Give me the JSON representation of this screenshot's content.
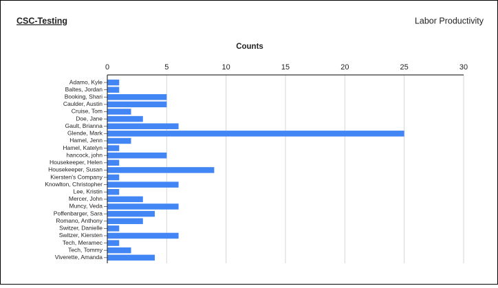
{
  "header": {
    "left_title": "CSC-Testing",
    "right_title": "Labor Productivity"
  },
  "chart_data": {
    "type": "bar",
    "orientation": "horizontal",
    "title": "Counts",
    "color": "#4285f4",
    "grid": true,
    "categories": [
      "Adamo, Kyle",
      "Baltes, Jordan",
      "Booking, Shari",
      "Caulder, Austin",
      "Cruise, Tom",
      "Doe, Jane",
      "Gault, Brianna",
      "Glende, Mark",
      "Hamel, Jenn",
      "Hamel, Katelyn",
      "hancock, john",
      "Housekeeper, Helen",
      "Housekeeper, Susan",
      "Kiersten's Company",
      "Knowlton, Christopher",
      "Lee, Kristin",
      "Mercer, John",
      "Muncy, Veda",
      "Poffenbarger, Sara",
      "Romano, Anthony",
      "Switzer, Danielle",
      "Switzer, Kiersten",
      "Tech, Meramec",
      "Tech, Tommy",
      "Viverette, Amanda"
    ],
    "values": [
      1,
      1,
      5,
      5,
      2,
      3,
      6,
      25,
      2,
      1,
      5,
      1,
      9,
      1,
      6,
      1,
      3,
      6,
      4,
      3,
      1,
      6,
      1,
      2,
      4
    ],
    "xlim": [
      0,
      30
    ],
    "xticks": [
      0,
      5,
      10,
      15,
      20,
      25,
      30
    ]
  }
}
